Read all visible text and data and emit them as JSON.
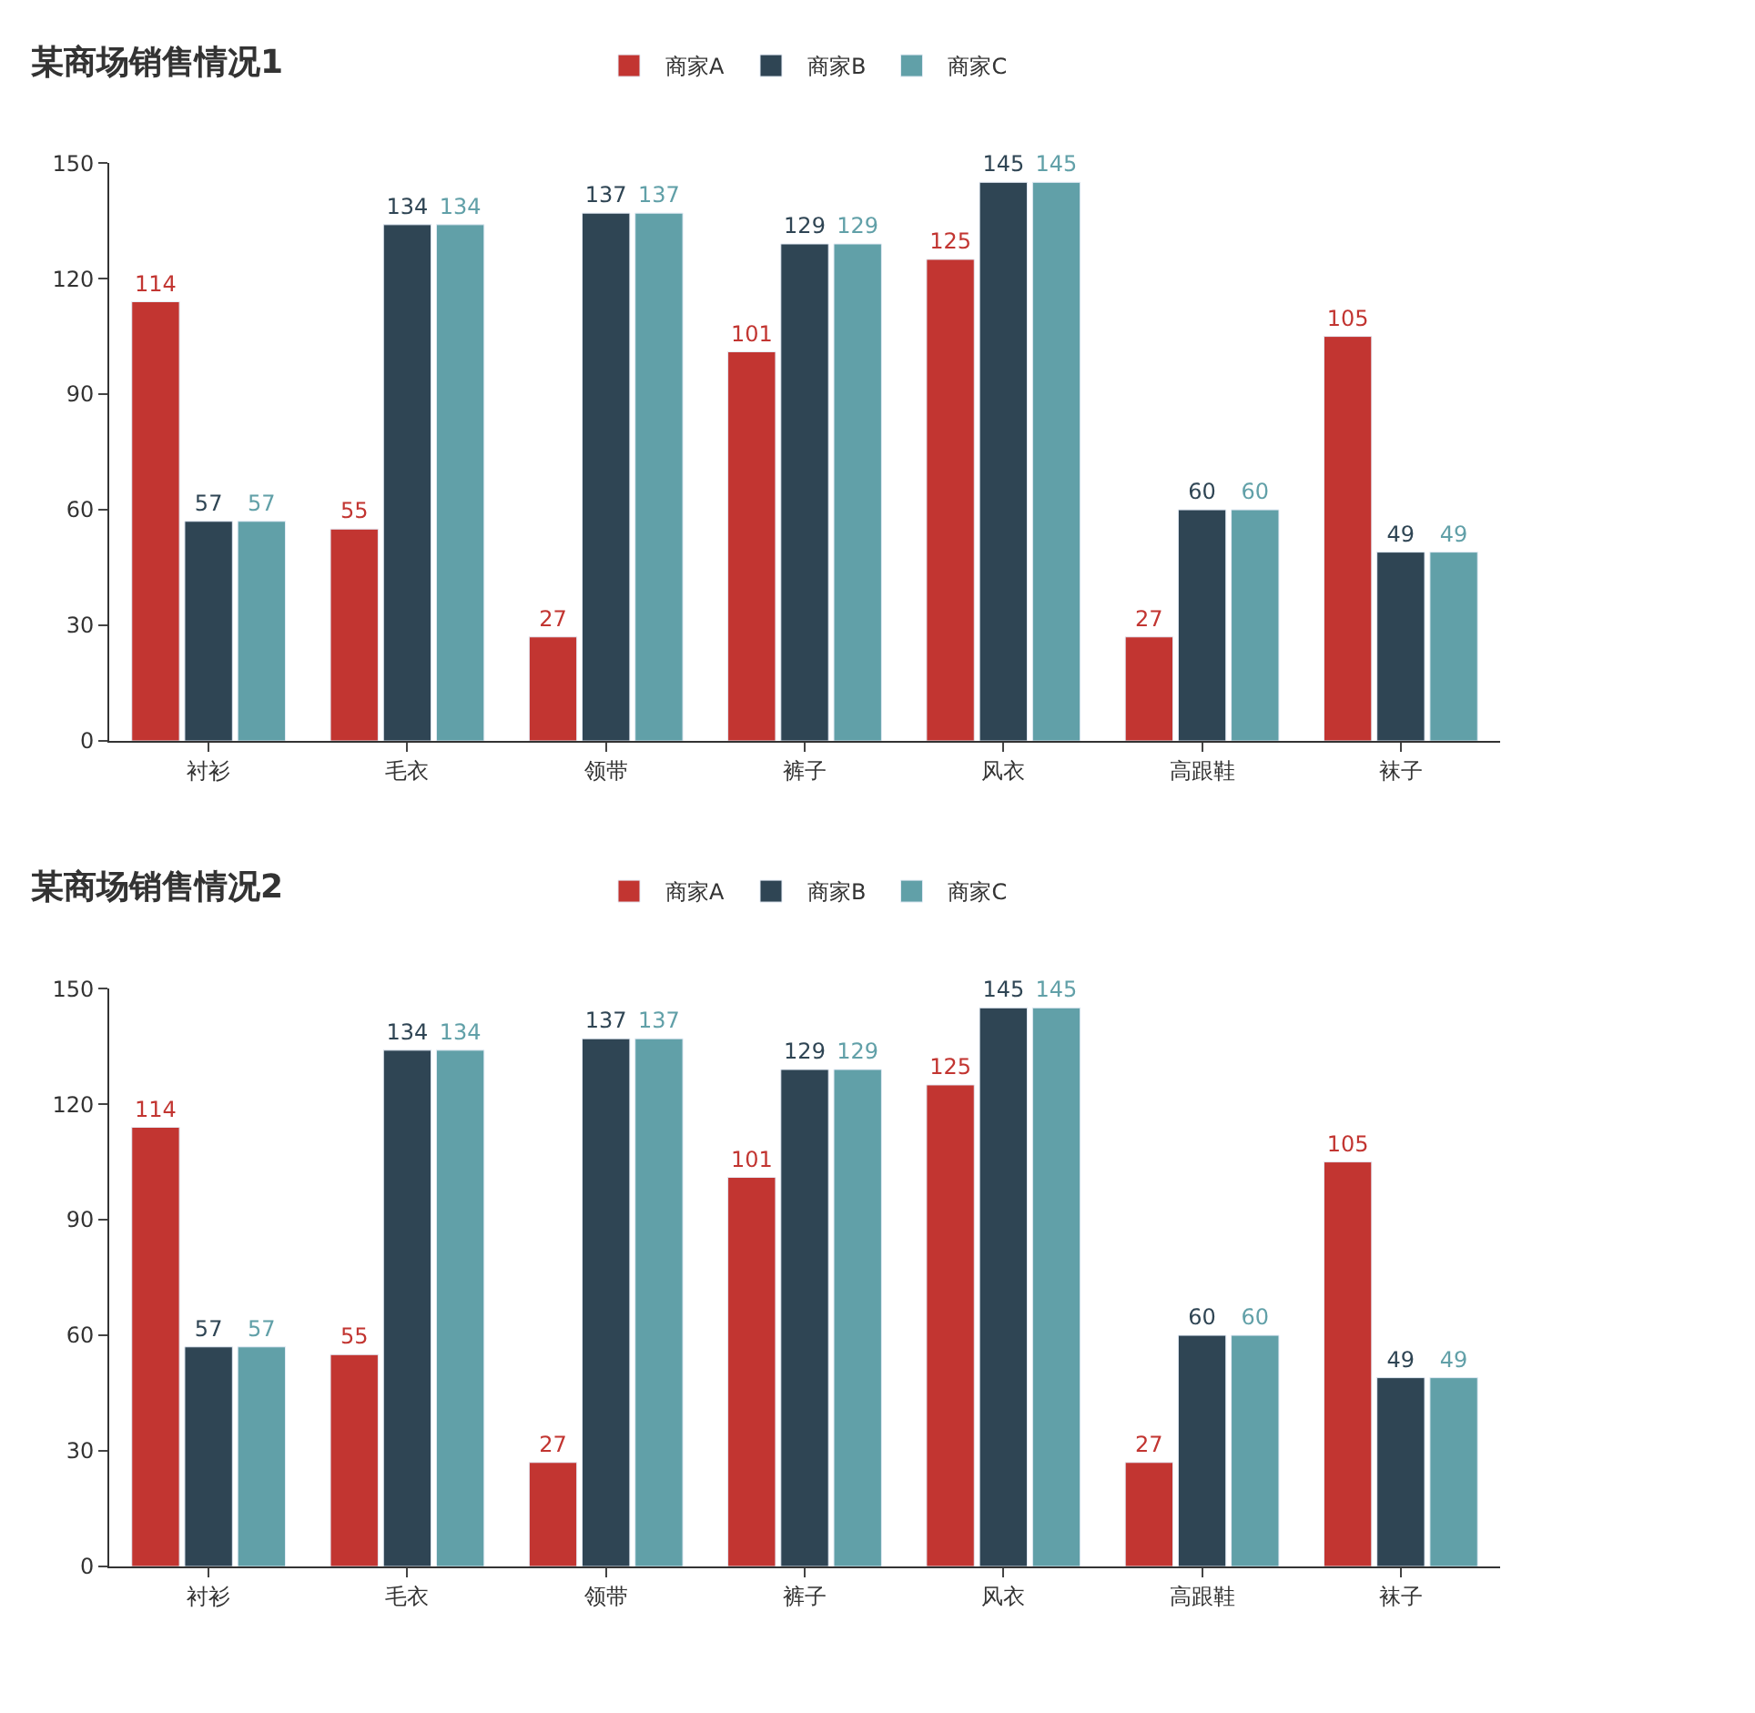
{
  "chart_data": [
    {
      "type": "bar",
      "title": "某商场销售情况1",
      "categories": [
        "衬衫",
        "毛衣",
        "领带",
        "裤子",
        "风衣",
        "高跟鞋",
        "袜子"
      ],
      "series": [
        {
          "name": "商家A",
          "color": "#c23531",
          "values": [
            114,
            55,
            27,
            101,
            125,
            27,
            105
          ]
        },
        {
          "name": "商家B",
          "color": "#2f4554",
          "values": [
            57,
            134,
            137,
            129,
            145,
            60,
            49
          ]
        },
        {
          "name": "商家C",
          "color": "#61a0a8",
          "values": [
            57,
            134,
            137,
            129,
            145,
            60,
            49
          ]
        }
      ],
      "ylim": [
        0,
        150
      ],
      "yticks": [
        0,
        30,
        60,
        90,
        120,
        150
      ],
      "data_labels": true,
      "legend": "top",
      "grid": false
    },
    {
      "type": "bar",
      "title": "某商场销售情况2",
      "categories": [
        "衬衫",
        "毛衣",
        "领带",
        "裤子",
        "风衣",
        "高跟鞋",
        "袜子"
      ],
      "series": [
        {
          "name": "商家A",
          "color": "#c23531",
          "values": [
            114,
            55,
            27,
            101,
            125,
            27,
            105
          ]
        },
        {
          "name": "商家B",
          "color": "#2f4554",
          "values": [
            57,
            134,
            137,
            129,
            145,
            60,
            49
          ]
        },
        {
          "name": "商家C",
          "color": "#61a0a8",
          "values": [
            57,
            134,
            137,
            129,
            145,
            60,
            49
          ]
        }
      ],
      "ylim": [
        0,
        150
      ],
      "yticks": [
        0,
        30,
        60,
        90,
        120,
        150
      ],
      "data_labels": true,
      "legend": "top",
      "grid": false
    }
  ]
}
